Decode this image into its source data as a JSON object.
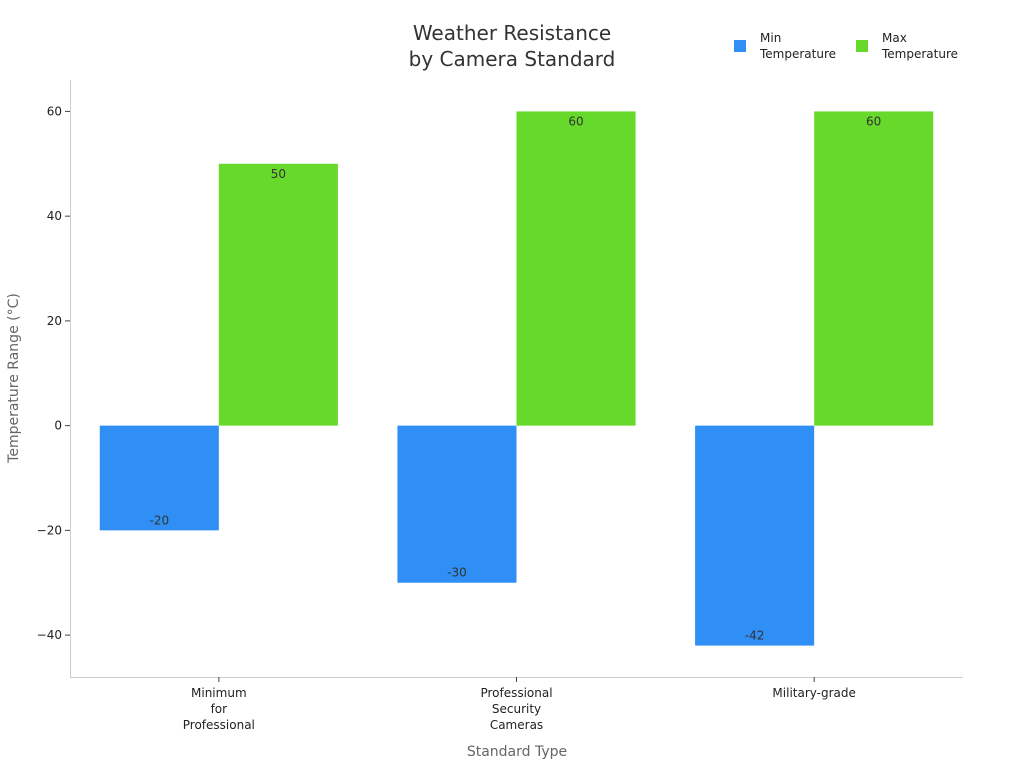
{
  "chart_data": {
    "type": "bar",
    "title": "Weather Resistance\nby Camera Standard",
    "xlabel": "Standard Type",
    "ylabel": "Temperature Range (°C)",
    "categories": [
      "Minimum\nfor\nProfessional",
      "Professional\nSecurity\nCameras",
      "Military-grade"
    ],
    "series": [
      {
        "name": "Min\nTemperature",
        "color": "#2f8ff5",
        "values": [
          -20,
          -30,
          -42
        ]
      },
      {
        "name": "Max\nTemperature",
        "color": "#66d92a",
        "values": [
          50,
          60,
          60
        ]
      }
    ],
    "ylim": [
      -48,
      66
    ],
    "yticks": [
      {
        "value": -40,
        "label": "−40"
      },
      {
        "value": -20,
        "label": "−20"
      },
      0,
      20,
      40,
      60
    ],
    "legend": "upper right"
  }
}
